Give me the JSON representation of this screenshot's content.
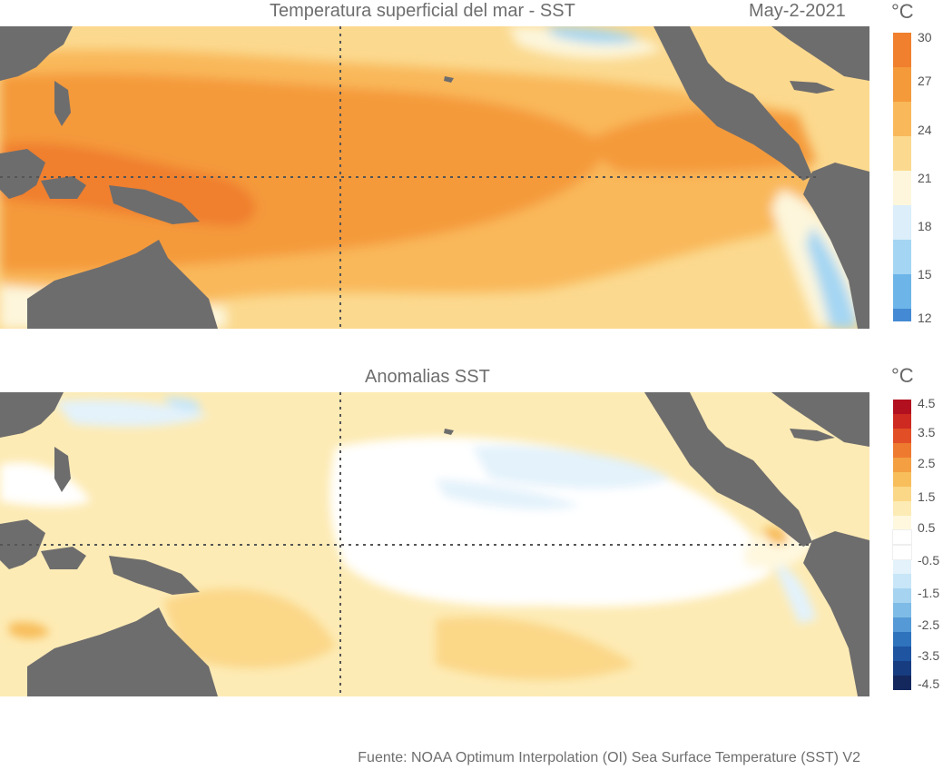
{
  "top_panel": {
    "title": "Temperatura superficial del mar - SST",
    "date": "May-2-2021",
    "unit": "°C",
    "colorbar": {
      "labels": [
        "30",
        "27",
        "24",
        "21",
        "18",
        "15",
        "12"
      ],
      "colors": [
        "#f07f2e",
        "#f49a3b",
        "#f9b85a",
        "#fbd98f",
        "#fdf6dc",
        "#dbeefa",
        "#a4d6f3",
        "#6db5e8",
        "#4489d3"
      ]
    }
  },
  "bottom_panel": {
    "title": "Anomalias SST",
    "unit": "°C",
    "colorbar": {
      "labels": [
        "4.5",
        "3.5",
        "2.5",
        "1.5",
        "0.5",
        "-0.5",
        "-1.5",
        "-2.5",
        "-3.5",
        "-4.5"
      ],
      "colors": [
        "#b2101f",
        "#cf2a21",
        "#e24e26",
        "#ee7a2f",
        "#f39f42",
        "#f8be5c",
        "#fbd788",
        "#fdebb5",
        "#fff8df",
        "#ffffff",
        "#ffffff",
        "#e3f2fb",
        "#c8e6f7",
        "#a6d3f0",
        "#7ebbe6",
        "#5599d6",
        "#2f73bd",
        "#1e54a0",
        "#183c80",
        "#14285e"
      ]
    }
  },
  "source": "Fuente: NOAA Optimum Interpolation (OI) Sea Surface Temperature (SST) V2",
  "colors": {
    "land": "#6e6d6d",
    "grid": "#555555"
  },
  "icons": [
    "celsius-unit"
  ]
}
